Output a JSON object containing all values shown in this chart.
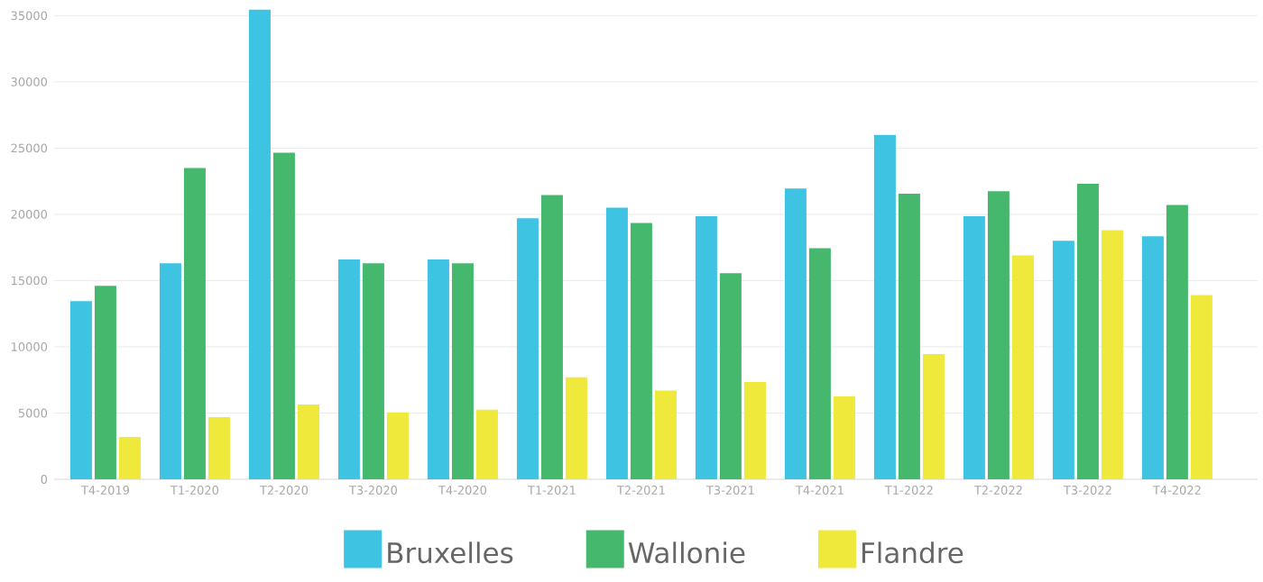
{
  "chart_data": {
    "type": "bar",
    "categories": [
      "T4-2019",
      "T1-2020",
      "T2-2020",
      "T3-2020",
      "T4-2020",
      "T1-2021",
      "T2-2021",
      "T3-2021",
      "T4-2021",
      "T1-2022",
      "T2-2022",
      "T3-2022",
      "T4-2022"
    ],
    "series": [
      {
        "name": "Bruxelles",
        "color": "#3ec3e2",
        "values": [
          13450,
          16300,
          35450,
          16600,
          16600,
          19700,
          20500,
          19850,
          21950,
          26000,
          19850,
          18000,
          18350
        ]
      },
      {
        "name": "Wallonie",
        "color": "#46b86d",
        "values": [
          14600,
          23500,
          24650,
          16300,
          16300,
          21450,
          19350,
          15550,
          17450,
          21550,
          21750,
          22300,
          20700
        ]
      },
      {
        "name": "Flandre",
        "color": "#eee93a",
        "values": [
          3200,
          4700,
          5650,
          5050,
          5250,
          7700,
          6700,
          7350,
          6250,
          9450,
          16900,
          18800,
          13900
        ]
      }
    ],
    "ylim": [
      0,
      35500
    ],
    "yticks": [
      0,
      5000,
      10000,
      15000,
      20000,
      25000,
      30000,
      35000
    ],
    "grid": "y",
    "legend": "bottom"
  }
}
